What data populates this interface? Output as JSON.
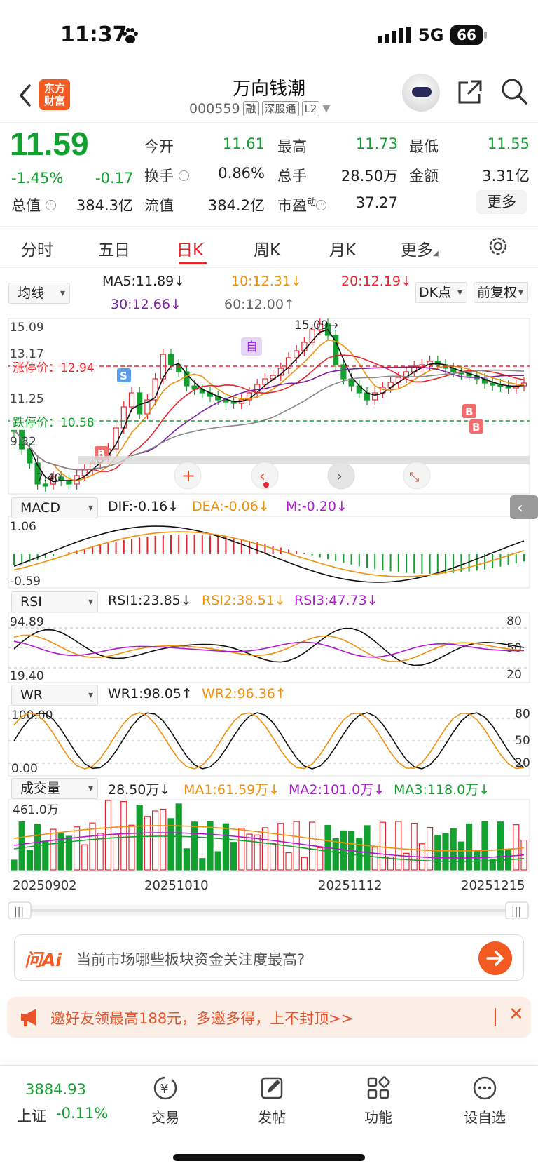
{
  "status_bar": {
    "time": "11:37",
    "network": "5G",
    "battery": "66"
  },
  "header": {
    "brand": "东方财富",
    "stock_name": "万向钱潮",
    "stock_code": "000559",
    "tags": [
      "融",
      "深股通",
      "L2"
    ]
  },
  "quote": {
    "price": "11.59",
    "change_pct": "-1.45%",
    "change_val": "-0.17",
    "fields": {
      "open_label": "今开",
      "open": "11.61",
      "high_label": "最高",
      "high": "11.73",
      "low_label": "最低",
      "low": "11.55",
      "turnover_label": "换手",
      "turnover": "0.86%",
      "volume_label": "总手",
      "volume": "28.50万",
      "amount_label": "金额",
      "amount": "3.31亿",
      "mktcap_label": "总值",
      "mktcap": "384.3亿",
      "float_label": "流值",
      "float": "384.2亿",
      "pe_label": "市盈",
      "pe_sup": "动",
      "pe": "37.27"
    },
    "more_label": "更多"
  },
  "tabs": [
    "分时",
    "五日",
    "日K",
    "周K",
    "月K",
    "更多"
  ],
  "active_tab": "日K",
  "ma_legend": {
    "selector": "均线",
    "ma5": "MA5:11.89↓",
    "ma10": "10:12.31↓",
    "ma20": "20:12.19↓",
    "ma30": "30:12.66↓",
    "ma60": "60:12.00↑",
    "dk_button": "DK点",
    "adjust_button": "前复权"
  },
  "kline": {
    "y_labels": [
      "15.09",
      "13.17",
      "11.25",
      "9.32"
    ],
    "limit_up_label": "涨停价：12.94",
    "limit_down_label": "跌停价：10.58",
    "max_annotation": "15.09→",
    "min_annotation": "7.40",
    "marker_self": "自"
  },
  "macd": {
    "selector": "MACD",
    "dif": "DIF:-0.16↓",
    "dea": "DEA:-0.06↓",
    "m": "M:-0.20↓",
    "y_top": "1.06",
    "y_bottom": "-0.59"
  },
  "rsi": {
    "selector": "RSI",
    "rsi1": "RSI1:23.85↓",
    "rsi2": "RSI2:38.51↓",
    "rsi3": "RSI3:47.73↓",
    "y_top": "94.89",
    "y_bottom": "19.40",
    "right_labels": [
      "80",
      "50",
      "20"
    ]
  },
  "wr": {
    "selector": "WR",
    "wr1": "WR1:98.05↑",
    "wr2": "WR2:96.36↑",
    "y_top": "100.00",
    "y_bottom": "0.00",
    "right_labels": [
      "80",
      "50",
      "20"
    ]
  },
  "volume": {
    "selector": "成交量",
    "vol": "28.50万↓",
    "ma1": "MA1:61.59万↓",
    "ma2": "MA2:101.0万↓",
    "ma3": "MA3:118.0万↓",
    "y_top": "461.0万"
  },
  "x_dates": [
    "20250902",
    "20251010",
    "20251112",
    "20251215"
  ],
  "ai": {
    "logo": "问Ai",
    "question": "当前市场哪些板块资金关注度最高?"
  },
  "promo": {
    "text": "邀好友领最高188元，多邀多得，上不封顶>>"
  },
  "bottom_nav": {
    "index_value": "3884.93",
    "index_name": "上证",
    "index_change": "-0.11%",
    "items": [
      "交易",
      "发帖",
      "功能",
      "设自选"
    ]
  },
  "colors": {
    "up": "#e8242d",
    "down": "#12a12f",
    "accent": "#f25a21"
  }
}
